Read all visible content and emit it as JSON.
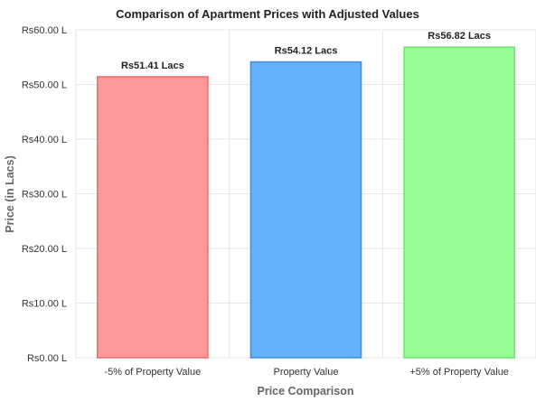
{
  "chart_data": {
    "type": "bar",
    "title": "Comparison of Apartment Prices with Adjusted Values",
    "xlabel": "Price Comparison",
    "ylabel": "Price (in Lacs)",
    "categories": [
      "-5% of Property Value",
      "Property Value",
      "+5% of Property Value"
    ],
    "values": [
      51.41,
      54.12,
      56.82
    ],
    "data_labels": [
      "Rs51.41 Lacs",
      "Rs54.12 Lacs",
      "Rs56.82 Lacs"
    ],
    "colors": [
      "#ff9896",
      "#64b0fb",
      "#98fc94"
    ],
    "border_colors": [
      "#e86c6a",
      "#3d8fe0",
      "#6be667"
    ],
    "ylim": [
      0,
      60
    ],
    "yticks": [
      0,
      10,
      20,
      30,
      40,
      50,
      60
    ],
    "ytick_labels": [
      "Rs0.00 L",
      "Rs10.00 L",
      "Rs20.00 L",
      "Rs30.00 L",
      "Rs40.00 L",
      "Rs50.00 L",
      "Rs60.00 L"
    ],
    "grid": true,
    "legend": "none"
  }
}
